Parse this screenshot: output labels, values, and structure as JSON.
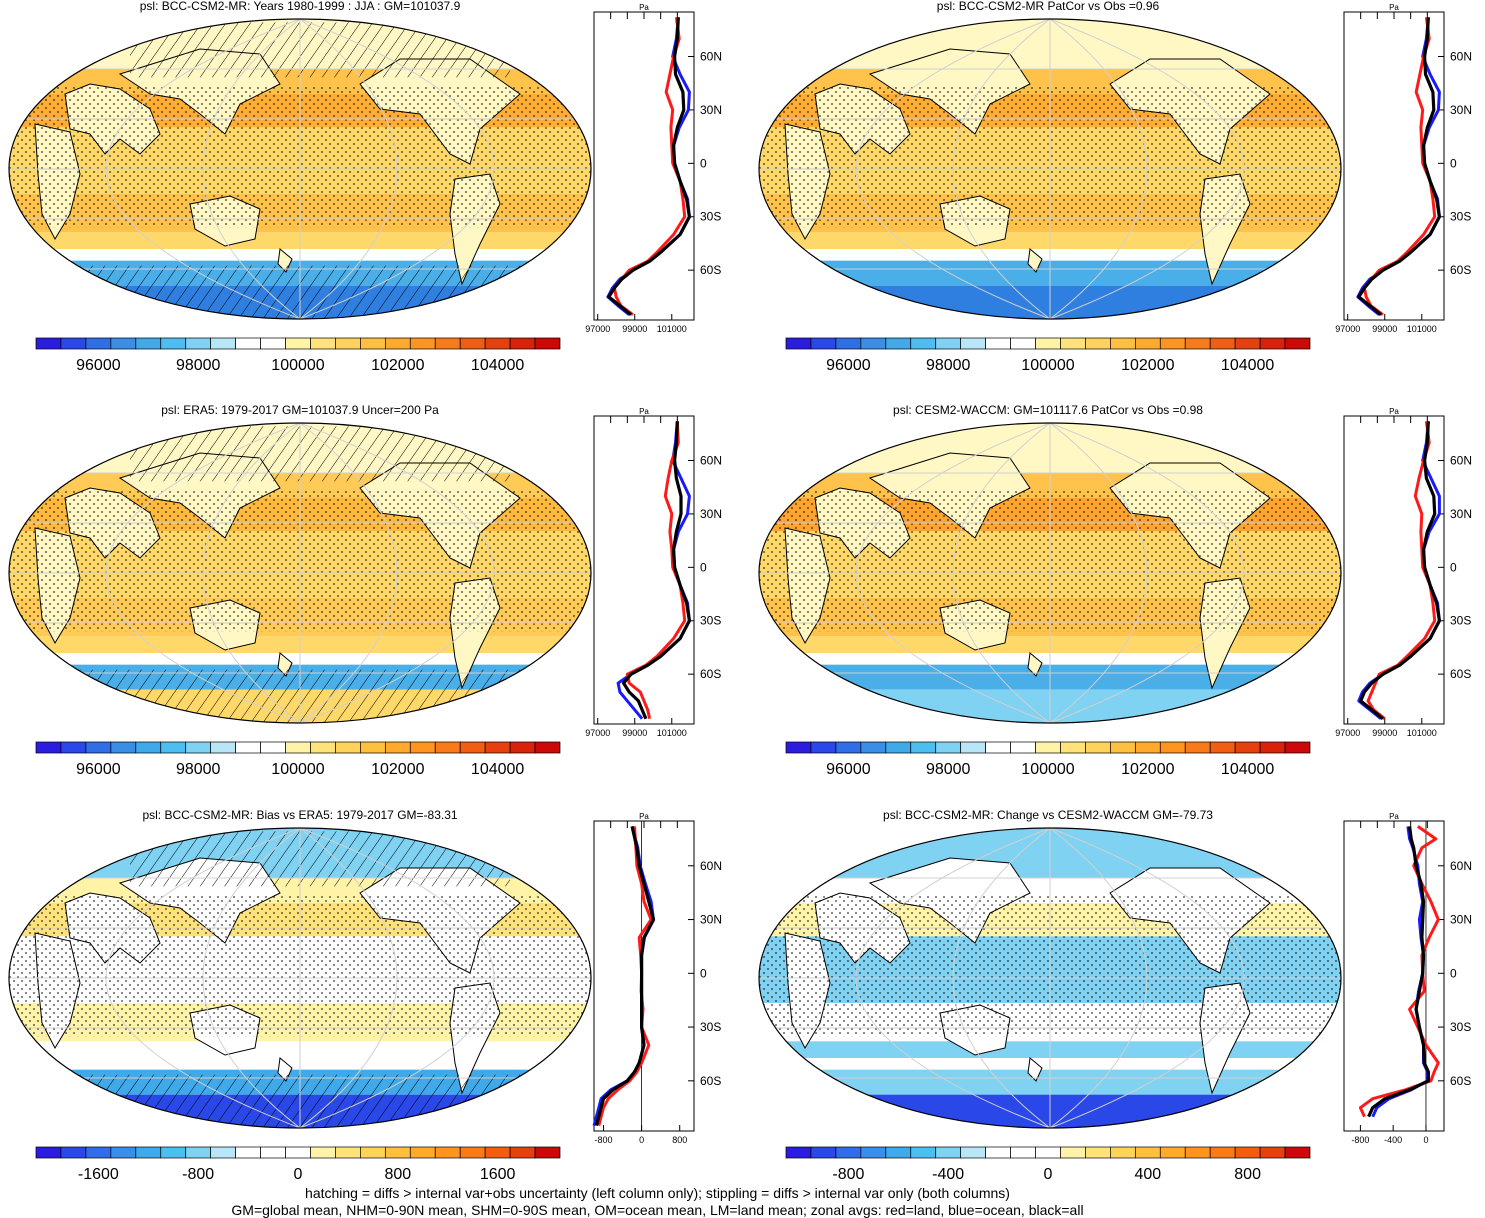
{
  "footer": {
    "line1": "hatching = diffs > internal var+obs uncertainty (left column only); stippling = diffs > internal var only (both columns)",
    "line2": "GM=global mean, NHM=0-90N mean, SHM=0-90S mean, OM=ocean mean, LM=land mean; zonal avgs: red=land, blue=ocean, black=all"
  },
  "palettes": {
    "abs": [
      "#2b1de0",
      "#2a47e8",
      "#2f6ee6",
      "#3a8ee8",
      "#3fa9ea",
      "#4dbef0",
      "#7fd2f2",
      "#b9e6f7",
      "#ffffff",
      "#ffffff",
      "#fff3a8",
      "#ffe27a",
      "#ffd25c",
      "#ffc040",
      "#ffaa2c",
      "#ff9420",
      "#f97a18",
      "#f15e12",
      "#e5400e",
      "#d8220a",
      "#cc0808"
    ],
    "diff": [
      "#2b1de0",
      "#2a47e8",
      "#2f6ee6",
      "#3a8ee8",
      "#3fa9ea",
      "#4dbef0",
      "#7fd2f2",
      "#b9e6f7",
      "#ffffff",
      "#ffffff",
      "#ffffff",
      "#fff3a8",
      "#ffe27a",
      "#ffd25c",
      "#ffc040",
      "#ffaa2c",
      "#ff9420",
      "#f97a18",
      "#f15e12",
      "#e5400e",
      "#cc0808"
    ]
  },
  "chart_data": [
    {
      "type": "heatmap",
      "id": "bcc-mean",
      "title": "psl: BCC-CSM2-MR: Years 1980-1999 : JJA : GM=101037.9",
      "colorbar": {
        "palette": "abs",
        "ticks": [
          "96000",
          "98000",
          "100000",
          "102000",
          "104000"
        ],
        "tick_values": [
          96000,
          98000,
          100000,
          102000,
          104000
        ],
        "range": [
          94750,
          105250
        ]
      },
      "map": {
        "land": "#fff8c4",
        "tropics": "#ffd86a",
        "subtropics": "#ffc24a",
        "highs": "#ffae33",
        "southern_ocean": "#4aaee8",
        "antarctic": "#2f7fe0",
        "hatched": true
      },
      "zonal": {
        "unit": "Pa",
        "x_ticks": [
          "97000",
          "99000",
          "101000"
        ],
        "x_tick_values": [
          97000,
          99000,
          101000
        ],
        "xlim": [
          96800,
          102200
        ],
        "y_ticks": [
          "60N",
          "30N",
          "0",
          "30S",
          "60S"
        ],
        "y_tick_values": [
          60,
          30,
          0,
          -30,
          -60
        ],
        "lat": [
          82,
          70,
          60,
          50,
          40,
          30,
          20,
          10,
          0,
          -10,
          -20,
          -30,
          -40,
          -50,
          -55,
          -60,
          -65,
          -70,
          -75,
          -80,
          -85
        ],
        "all": [
          101350,
          101300,
          101150,
          101200,
          101600,
          101650,
          101300,
          101100,
          101150,
          101450,
          101800,
          101950,
          101450,
          100400,
          99800,
          98900,
          98300,
          97900,
          97600,
          98200,
          98800
        ],
        "land": [
          101250,
          101400,
          101100,
          100900,
          100700,
          101050,
          100950,
          101000,
          101050,
          101450,
          101600,
          101700,
          101100,
          100200,
          99700,
          98700,
          98300,
          97900,
          98000,
          98250,
          98900
        ],
        "ocean": [
          101350,
          101250,
          101050,
          101450,
          101950,
          101900,
          101400,
          101100,
          101150,
          101450,
          101850,
          101950,
          101450,
          100400,
          99800,
          98900,
          98200,
          97800,
          97550,
          98100,
          98700
        ]
      }
    },
    {
      "type": "heatmap",
      "id": "bcc-patcor",
      "title": "psl: BCC-CSM2-MR PatCor vs Obs =0.96",
      "colorbar": {
        "palette": "abs",
        "ticks": [
          "96000",
          "98000",
          "100000",
          "102000",
          "104000"
        ],
        "tick_values": [
          96000,
          98000,
          100000,
          102000,
          104000
        ],
        "range": [
          94750,
          105250
        ]
      },
      "map": {
        "land": "#fff8c4",
        "tropics": "#ffd86a",
        "subtropics": "#ffc24a",
        "highs": "#ffae33",
        "southern_ocean": "#4aaee8",
        "antarctic": "#2f7fe0",
        "hatched": false
      },
      "zonal": {
        "unit": "Pa",
        "x_ticks": [
          "97000",
          "99000",
          "101000"
        ],
        "x_tick_values": [
          97000,
          99000,
          101000
        ],
        "xlim": [
          96800,
          102200
        ],
        "y_ticks": [
          "60N",
          "30N",
          "0",
          "30S",
          "60S"
        ],
        "y_tick_values": [
          60,
          30,
          0,
          -30,
          -60
        ],
        "lat": [
          82,
          70,
          60,
          50,
          40,
          30,
          20,
          10,
          0,
          -10,
          -20,
          -30,
          -40,
          -50,
          -55,
          -60,
          -65,
          -70,
          -75,
          -80,
          -85
        ],
        "all": [
          101350,
          101300,
          101150,
          101200,
          101600,
          101650,
          101300,
          101100,
          101150,
          101450,
          101800,
          101950,
          101450,
          100400,
          99800,
          98900,
          98300,
          97900,
          97600,
          98200,
          98800
        ],
        "land": [
          101250,
          101400,
          101100,
          100900,
          100700,
          101050,
          100950,
          101000,
          101050,
          101450,
          101600,
          101700,
          101100,
          100200,
          99700,
          98700,
          98300,
          97900,
          98000,
          98250,
          98900
        ],
        "ocean": [
          101350,
          101250,
          101050,
          101450,
          101950,
          101900,
          101400,
          101100,
          101150,
          101450,
          101850,
          101950,
          101450,
          100400,
          99800,
          98900,
          98200,
          97800,
          97550,
          98100,
          98700
        ]
      }
    },
    {
      "type": "heatmap",
      "id": "era5-mean",
      "title": "psl: ERA5: 1979-2017 GM=101037.9 Uncer=200 Pa",
      "colorbar": {
        "palette": "abs",
        "ticks": [
          "96000",
          "98000",
          "100000",
          "102000",
          "104000"
        ],
        "tick_values": [
          96000,
          98000,
          100000,
          102000,
          104000
        ],
        "range": [
          94750,
          105250
        ]
      },
      "map": {
        "land": "#fff8c4",
        "tropics": "#ffd86a",
        "subtropics": "#ffca55",
        "highs": "#ffb93c",
        "southern_ocean": "#4aaee8",
        "antarctic": "#ffd86a",
        "hatched": true
      },
      "zonal": {
        "unit": "Pa",
        "x_ticks": [
          "97000",
          "99000",
          "101000"
        ],
        "x_tick_values": [
          97000,
          99000,
          101000
        ],
        "xlim": [
          96800,
          102200
        ],
        "y_ticks": [
          "60N",
          "30N",
          "0",
          "30S",
          "60S"
        ],
        "y_tick_values": [
          60,
          30,
          0,
          -30,
          -60
        ],
        "lat": [
          82,
          70,
          60,
          50,
          40,
          30,
          20,
          10,
          0,
          -10,
          -20,
          -30,
          -40,
          -50,
          -55,
          -60,
          -65,
          -70,
          -75,
          -80,
          -85
        ],
        "all": [
          101300,
          101250,
          101150,
          101250,
          101500,
          101500,
          101250,
          101100,
          101150,
          101450,
          101800,
          101950,
          101450,
          100400,
          99700,
          98800,
          98400,
          98700,
          99200,
          99400,
          99600
        ],
        "land": [
          101300,
          101350,
          101000,
          100800,
          100650,
          101000,
          100900,
          101000,
          101050,
          101450,
          101600,
          101700,
          101100,
          100200,
          99600,
          98600,
          98700,
          99300,
          99500,
          99700,
          99800
        ],
        "ocean": [
          101300,
          101200,
          101050,
          101500,
          101950,
          101850,
          101350,
          101100,
          101150,
          101450,
          101850,
          101950,
          101450,
          100400,
          99700,
          98800,
          98100,
          98200,
          98600,
          99000,
          99400
        ]
      }
    },
    {
      "type": "heatmap",
      "id": "cesm-mean",
      "title": "psl: CESM2-WACCM: GM=101117.6 PatCor vs Obs =0.98",
      "colorbar": {
        "palette": "abs",
        "ticks": [
          "96000",
          "98000",
          "100000",
          "102000",
          "104000"
        ],
        "tick_values": [
          96000,
          98000,
          100000,
          102000,
          104000
        ],
        "range": [
          94750,
          105250
        ]
      },
      "map": {
        "land": "#fff8c4",
        "tropics": "#ffd86a",
        "subtropics": "#ffc24a",
        "highs": "#ffa52f",
        "southern_ocean": "#4aaee8",
        "antarctic": "#7fd2f2",
        "hatched": false
      },
      "zonal": {
        "unit": "Pa",
        "x_ticks": [
          "97000",
          "99000",
          "101000"
        ],
        "x_tick_values": [
          97000,
          99000,
          101000
        ],
        "xlim": [
          96800,
          102200
        ],
        "y_ticks": [
          "60N",
          "30N",
          "0",
          "30S",
          "60S"
        ],
        "y_tick_values": [
          60,
          30,
          0,
          -30,
          -60
        ],
        "lat": [
          82,
          70,
          60,
          50,
          40,
          30,
          20,
          10,
          0,
          -10,
          -20,
          -30,
          -40,
          -50,
          -55,
          -60,
          -65,
          -70,
          -75,
          -80,
          -85
        ],
        "all": [
          101350,
          101300,
          101150,
          101250,
          101650,
          101700,
          101300,
          101100,
          101150,
          101450,
          101800,
          101950,
          101450,
          100400,
          99800,
          98900,
          98300,
          97900,
          97700,
          98300,
          98900
        ],
        "land": [
          101250,
          101400,
          101100,
          100850,
          100650,
          101000,
          100950,
          101000,
          101050,
          101450,
          101600,
          101700,
          101150,
          100200,
          99700,
          98700,
          98500,
          98300,
          98100,
          98400,
          99000
        ],
        "ocean": [
          101350,
          101250,
          101050,
          101500,
          101950,
          101950,
          101400,
          101100,
          101150,
          101450,
          101850,
          101950,
          101450,
          100400,
          99800,
          98900,
          98200,
          97800,
          97600,
          98200,
          98800
        ]
      }
    },
    {
      "type": "heatmap",
      "id": "bcc-bias",
      "title": "psl: BCC-CSM2-MR: Bias vs ERA5: 1979-2017 GM=-83.31",
      "colorbar": {
        "palette": "diff",
        "ticks": [
          "-1600",
          "-800",
          "0",
          "800",
          "1600"
        ],
        "tick_values": [
          -1600,
          -800,
          0,
          800,
          1600
        ],
        "range": [
          -2100,
          2100
        ]
      },
      "map": {
        "land": "#ffffff",
        "tropics": "#ffffff",
        "subtropics": "#fff3a8",
        "highs": "#ffe27a",
        "southern_ocean": "#3fa9ea",
        "antarctic": "#2a47e8",
        "north_band": "#7fd2f2",
        "hatched": true
      },
      "zonal": {
        "unit": "Pa",
        "x_ticks": [
          "-800",
          "0",
          "800"
        ],
        "x_tick_values": [
          -800,
          0,
          800
        ],
        "xlim": [
          -1000,
          1100
        ],
        "y_ticks": [
          "60N",
          "30N",
          "0",
          "30S",
          "60S"
        ],
        "y_tick_values": [
          60,
          30,
          0,
          -30,
          -60
        ],
        "lat": [
          82,
          70,
          60,
          50,
          40,
          30,
          20,
          10,
          0,
          -10,
          -20,
          -30,
          -40,
          -50,
          -55,
          -60,
          -65,
          -70,
          -75,
          -80,
          -85
        ],
        "all": [
          -200,
          -100,
          -50,
          50,
          150,
          250,
          50,
          0,
          0,
          0,
          0,
          0,
          50,
          -50,
          -150,
          -300,
          -600,
          -800,
          -850,
          -900,
          -950
        ],
        "land": [
          -150,
          -120,
          -100,
          0,
          50,
          200,
          -50,
          -20,
          0,
          -10,
          30,
          0,
          150,
          0,
          -100,
          -250,
          -500,
          -700,
          -800,
          -850,
          -900
        ],
        "ocean": [
          -200,
          -80,
          -30,
          80,
          200,
          250,
          60,
          0,
          0,
          0,
          0,
          0,
          50,
          -50,
          -150,
          -300,
          -650,
          -850,
          -900,
          -950,
          -1000
        ]
      }
    },
    {
      "type": "heatmap",
      "id": "bcc-change",
      "title": "psl: BCC-CSM2-MR: Change vs CESM2-WACCM GM=-79.73",
      "colorbar": {
        "palette": "diff",
        "ticks": [
          "-800",
          "-400",
          "0",
          "400",
          "800"
        ],
        "tick_values": [
          -800,
          -400,
          0,
          400,
          800
        ],
        "range": [
          -1050,
          1050
        ]
      },
      "map": {
        "land": "#ffffff",
        "tropics": "#7fd2f2",
        "subtropics": "#ffffff",
        "highs": "#fff3a8",
        "southern_ocean": "#7fd2f2",
        "antarctic": "#2a47e8",
        "north_band": "#7fd2f2",
        "hatched": false
      },
      "zonal": {
        "unit": "Pa",
        "x_ticks": [
          "-800",
          "-400",
          "0"
        ],
        "x_tick_values": [
          -800,
          -400,
          0
        ],
        "xlim": [
          -1000,
          220
        ],
        "y_ticks": [
          "60N",
          "30N",
          "0",
          "30S",
          "60S"
        ],
        "y_tick_values": [
          60,
          30,
          0,
          -30,
          -60
        ],
        "lat": [
          82,
          75,
          70,
          60,
          50,
          40,
          30,
          20,
          10,
          0,
          -10,
          -20,
          -30,
          -40,
          -50,
          -55,
          -60,
          -65,
          -70,
          -75,
          -80
        ],
        "all": [
          -200,
          -180,
          -150,
          -120,
          -60,
          -30,
          -40,
          -50,
          -30,
          -40,
          -80,
          -120,
          -80,
          -30,
          -20,
          30,
          30,
          -200,
          -500,
          -650,
          -700
        ],
        "land": [
          -100,
          120,
          -50,
          -150,
          -50,
          60,
          150,
          40,
          -50,
          -40,
          -20,
          -200,
          -100,
          0,
          150,
          100,
          60,
          -250,
          -650,
          -800,
          -750
        ],
        "ocean": [
          -220,
          -200,
          -160,
          -100,
          -80,
          -40,
          -80,
          -60,
          -30,
          -40,
          -90,
          -120,
          -80,
          -30,
          -30,
          20,
          20,
          -180,
          -450,
          -600,
          -650
        ]
      }
    }
  ]
}
